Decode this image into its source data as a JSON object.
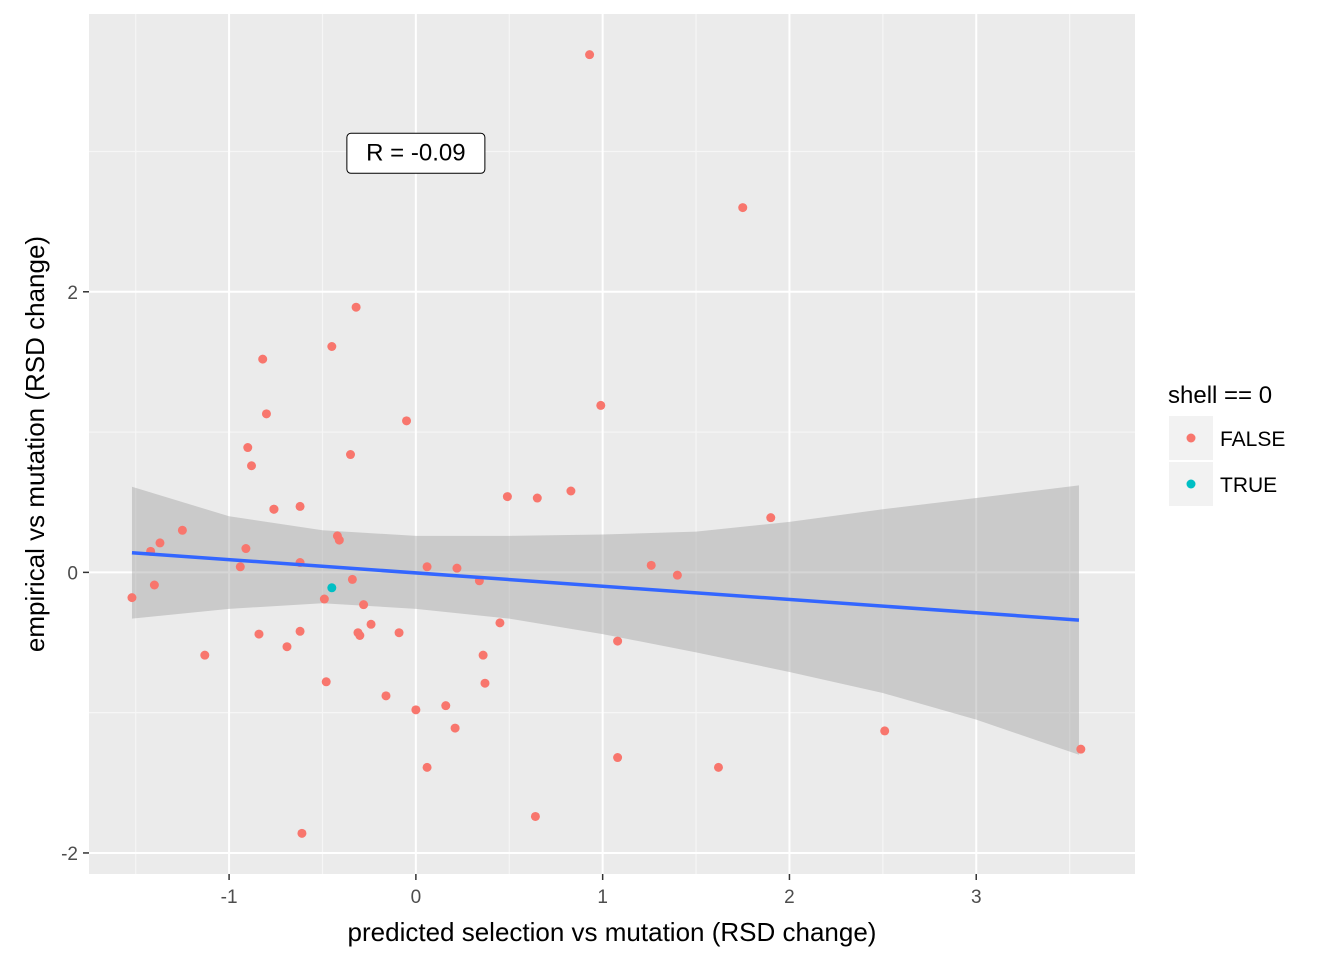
{
  "chart_data": {
    "type": "scatter",
    "xlabel": "predicted selection vs mutation (RSD change)",
    "ylabel": "empirical vs mutation (RSD change)",
    "xlim": [
      -1.75,
      3.85
    ],
    "ylim": [
      -2.15,
      3.98
    ],
    "x_ticks": [
      -1,
      0,
      1,
      2,
      3
    ],
    "y_ticks": [
      -2,
      0,
      2
    ],
    "x_tick_labels": [
      "-1",
      "0",
      "1",
      "2",
      "3"
    ],
    "y_tick_labels": [
      "-2",
      "0",
      "2"
    ],
    "grid": true,
    "annotation": {
      "text": "R = -0.09",
      "x": 0.0,
      "y": 2.98
    },
    "legend": {
      "title": "shell == 0",
      "position": "right",
      "entries": [
        {
          "label": "FALSE",
          "color": "#F8766D"
        },
        {
          "label": "TRUE",
          "color": "#00BFC4"
        }
      ]
    },
    "fit_line": {
      "color": "#3366FF",
      "x": [
        -1.52,
        3.55
      ],
      "y": [
        0.14,
        -0.34
      ]
    },
    "confidence_band": {
      "color": "#999999",
      "x": [
        -1.52,
        -1.0,
        -0.5,
        0.0,
        0.5,
        1.0,
        1.5,
        2.0,
        2.5,
        3.0,
        3.55
      ],
      "upper": [
        0.61,
        0.4,
        0.3,
        0.26,
        0.26,
        0.27,
        0.29,
        0.36,
        0.45,
        0.53,
        0.62
      ],
      "lower": [
        -0.33,
        -0.26,
        -0.22,
        -0.26,
        -0.33,
        -0.44,
        -0.57,
        -0.71,
        -0.86,
        -1.05,
        -1.3
      ]
    },
    "series": [
      {
        "name": "FALSE",
        "color": "#F8766D",
        "x": [
          -1.52,
          -1.42,
          -1.4,
          -1.37,
          -1.25,
          -1.13,
          -0.94,
          -0.91,
          -0.9,
          -0.88,
          -0.84,
          -0.82,
          -0.8,
          -0.76,
          -0.76,
          -0.69,
          -0.62,
          -0.62,
          -0.62,
          -0.61,
          -0.49,
          -0.48,
          -0.45,
          -0.42,
          -0.41,
          -0.35,
          -0.34,
          -0.32,
          -0.31,
          -0.3,
          -0.28,
          -0.24,
          -0.16,
          -0.09,
          -0.05,
          0.0,
          0.06,
          0.06,
          0.16,
          0.21,
          0.22,
          0.34,
          0.36,
          0.37,
          0.45,
          0.49,
          0.64,
          0.65,
          0.83,
          0.93,
          0.99,
          1.08,
          1.08,
          1.26,
          1.4,
          1.62,
          1.75,
          1.9,
          2.51,
          3.56
        ],
        "y": [
          -0.18,
          0.15,
          -0.09,
          0.21,
          0.3,
          -0.59,
          0.04,
          0.17,
          0.89,
          0.76,
          -0.44,
          1.52,
          1.13,
          0.45,
          0.45,
          -0.53,
          0.47,
          0.07,
          -0.42,
          -1.86,
          -0.19,
          -0.78,
          1.61,
          0.26,
          0.23,
          0.84,
          -0.05,
          1.89,
          -0.43,
          -0.45,
          -0.23,
          -0.37,
          -0.88,
          -0.43,
          1.08,
          -0.98,
          0.04,
          -1.39,
          -0.95,
          -1.11,
          0.03,
          -0.06,
          -0.59,
          -0.79,
          -0.36,
          0.54,
          -1.74,
          0.53,
          0.58,
          3.69,
          1.19,
          -0.49,
          -1.32,
          0.05,
          -0.02,
          -1.39,
          2.6,
          0.39,
          -1.13,
          -1.26
        ]
      },
      {
        "name": "TRUE",
        "color": "#00BFC4",
        "x": [
          -0.45
        ],
        "y": [
          -0.11
        ]
      }
    ]
  }
}
